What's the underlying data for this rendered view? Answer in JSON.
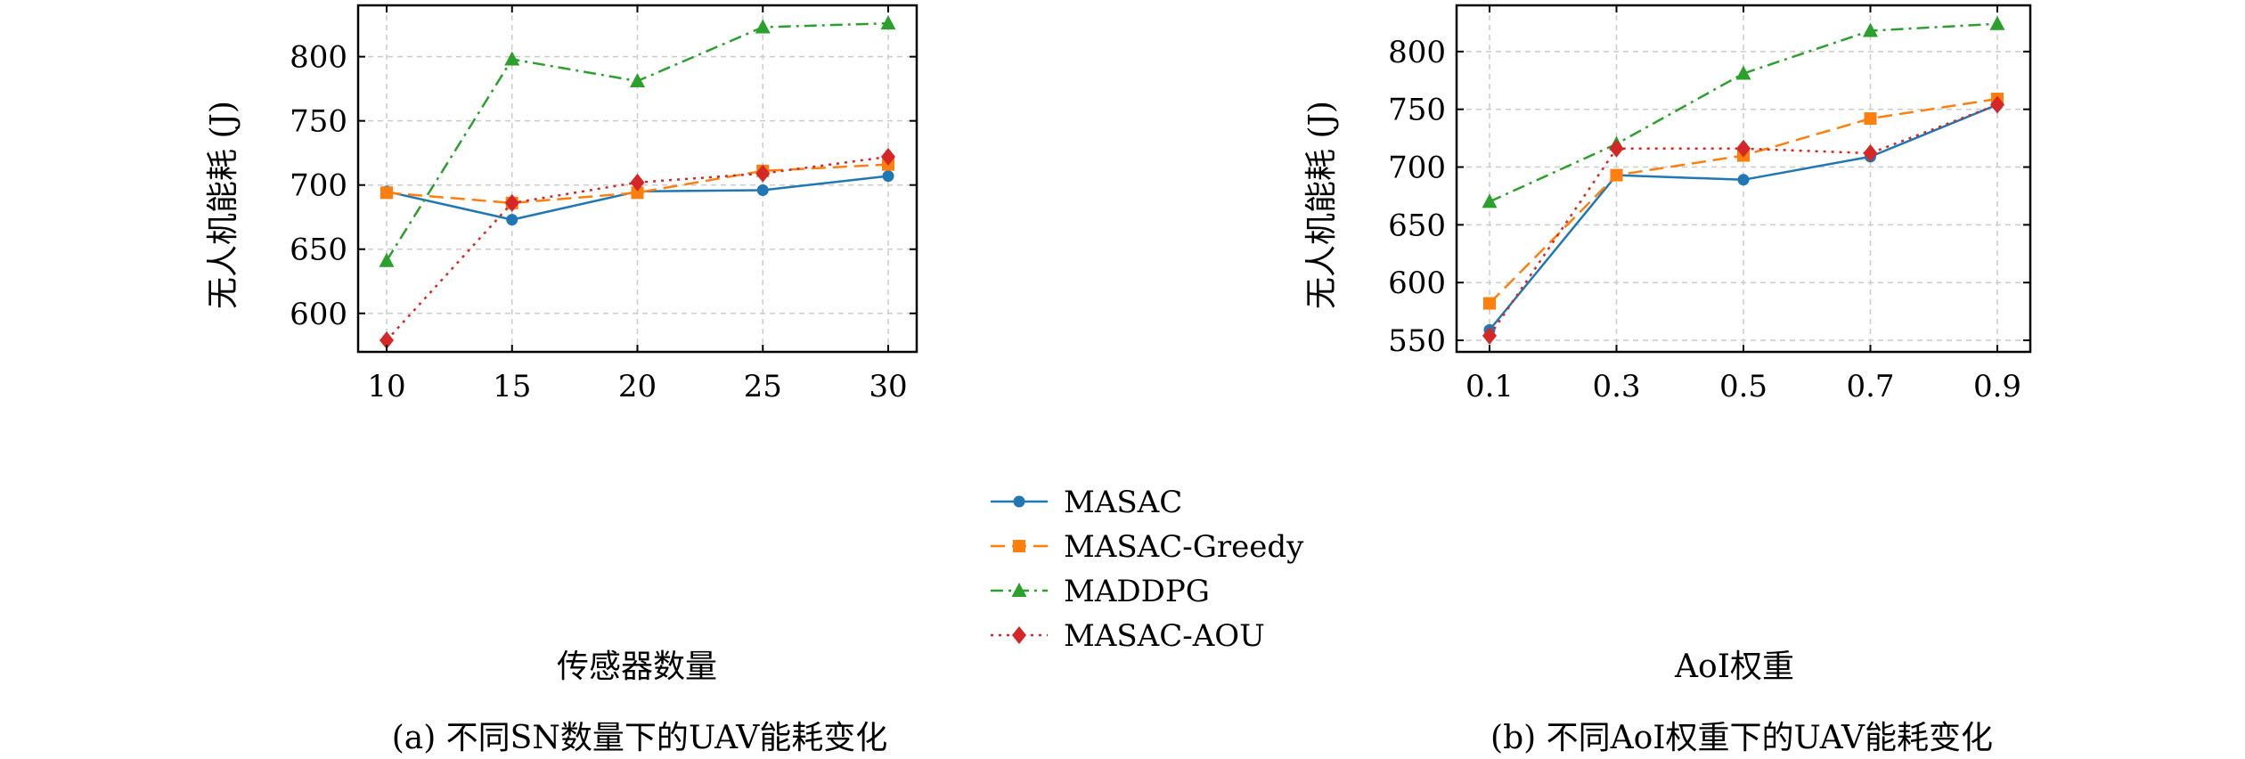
{
  "legend": {
    "placement": "between-panels",
    "entries": [
      "MASAC",
      "MASAC-Greedy",
      "MADDPG",
      "MASAC-AOU"
    ]
  },
  "colors": {
    "MASAC": "#1f77b4",
    "MASAC-Greedy": "#ff7f0e",
    "MADDPG": "#2ca02c",
    "MASAC-AOU": "#d62728"
  },
  "chart_data": [
    {
      "type": "line",
      "caption": "(a) 不同SN数量下的UAV能耗变化",
      "xlabel": "传感器数量",
      "ylabel": "无人机能耗 (J)",
      "x": [
        10,
        15,
        20,
        25,
        30
      ],
      "x_tick_labels": [
        "10",
        "15",
        "20",
        "25",
        "30"
      ],
      "xlim": [
        10,
        30
      ],
      "ylim": [
        570,
        840
      ],
      "y_ticks": [
        600,
        650,
        700,
        750,
        800
      ],
      "grid": true,
      "series": [
        {
          "name": "MASAC",
          "marker": "circle",
          "dash": "solid",
          "values": [
            695,
            673,
            695,
            696,
            707
          ]
        },
        {
          "name": "MASAC-Greedy",
          "marker": "square",
          "dash": "dashed",
          "values": [
            694,
            686,
            694,
            711,
            716
          ]
        },
        {
          "name": "MADDPG",
          "marker": "triangle",
          "dash": "dashdot",
          "values": [
            641,
            798,
            781,
            823,
            826
          ]
        },
        {
          "name": "MASAC-AOU",
          "marker": "diamond",
          "dash": "dotted",
          "values": [
            579,
            686,
            702,
            709,
            722
          ]
        }
      ]
    },
    {
      "type": "line",
      "caption": "(b) 不同AoI权重下的UAV能耗变化",
      "xlabel": "AoI权重",
      "ylabel": "无人机能耗 (J)",
      "x": [
        0.1,
        0.3,
        0.5,
        0.7,
        0.9
      ],
      "x_tick_labels": [
        "0.1",
        "0.3",
        "0.5",
        "0.7",
        "0.9"
      ],
      "xlim": [
        0.1,
        0.9
      ],
      "ylim": [
        540,
        840
      ],
      "y_ticks": [
        550,
        600,
        650,
        700,
        750,
        800
      ],
      "grid": true,
      "series": [
        {
          "name": "MASAC",
          "marker": "circle",
          "dash": "solid",
          "values": [
            559,
            693,
            689,
            709,
            754
          ]
        },
        {
          "name": "MASAC-Greedy",
          "marker": "square",
          "dash": "dashed",
          "values": [
            582,
            693,
            710,
            742,
            759
          ]
        },
        {
          "name": "MADDPG",
          "marker": "triangle",
          "dash": "dashdot",
          "values": [
            670,
            720,
            781,
            818,
            824
          ]
        },
        {
          "name": "MASAC-AOU",
          "marker": "diamond",
          "dash": "dotted",
          "values": [
            554,
            716,
            716,
            712,
            754
          ]
        }
      ]
    }
  ]
}
